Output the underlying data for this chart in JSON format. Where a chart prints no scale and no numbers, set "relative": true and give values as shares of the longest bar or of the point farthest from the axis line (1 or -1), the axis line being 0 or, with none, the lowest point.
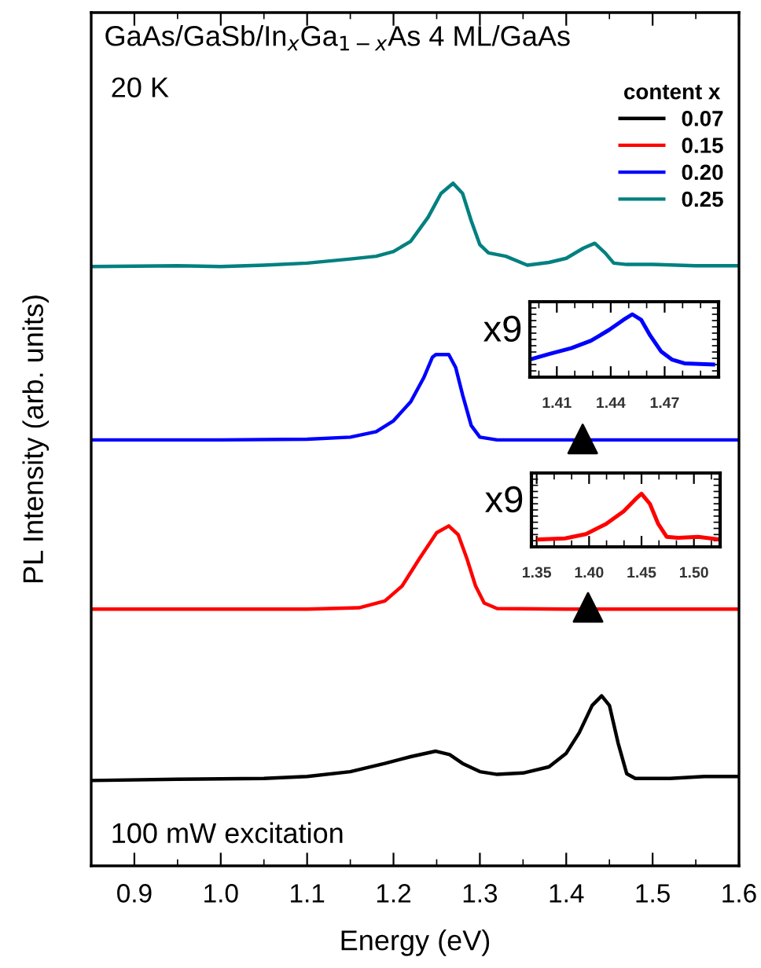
{
  "chart_data": [
    {
      "type": "line",
      "title": "GaAs/GaSb/In$_{x}$Ga$_{1−x}$As 4 ML/GaAs",
      "xlabel": "Energy (eV)",
      "ylabel": "PL Intensity (arb. units)",
      "relative": true,
      "xlim": [
        0.85,
        1.6
      ],
      "xticks": [
        {
          "value": 0.9,
          "label": "0.9"
        },
        {
          "value": 1.0,
          "label": "1.0"
        },
        {
          "value": 1.1,
          "label": "1.1"
        },
        {
          "value": 1.2,
          "label": "1.2"
        },
        {
          "value": 1.3,
          "label": "1.3"
        },
        {
          "value": 1.4,
          "label": "1.4"
        },
        {
          "value": 1.5,
          "label": "1.5"
        },
        {
          "value": 1.6,
          "label": "1.6"
        }
      ],
      "legend": "top right",
      "legend_title": "content x",
      "grid": false,
      "annotations": [
        "20 K",
        "100 mW excitation"
      ],
      "series": [
        {
          "name": "0.07",
          "color": "#000000",
          "x": [
            0.85,
            0.95,
            1.05,
            1.1,
            1.15,
            1.19,
            1.22,
            1.249,
            1.265,
            1.28,
            1.3,
            1.32,
            1.35,
            1.38,
            1.4,
            1.415,
            1.43,
            1.441,
            1.45,
            1.46,
            1.47,
            1.48,
            1.52,
            1.56,
            1.6
          ],
          "values": [
            0.125,
            0.127,
            0.128,
            0.131,
            0.138,
            0.15,
            0.16,
            0.168,
            0.163,
            0.15,
            0.138,
            0.134,
            0.136,
            0.145,
            0.165,
            0.195,
            0.235,
            0.249,
            0.235,
            0.18,
            0.135,
            0.128,
            0.128,
            0.131,
            0.131
          ]
        },
        {
          "name": "0.15",
          "color": "#ff0000",
          "x": [
            0.85,
            1.0,
            1.1,
            1.16,
            1.19,
            1.21,
            1.23,
            1.25,
            1.264,
            1.275,
            1.285,
            1.295,
            1.305,
            1.32,
            1.4,
            1.5,
            1.6
          ],
          "values": [
            0.376,
            0.376,
            0.376,
            0.378,
            0.388,
            0.41,
            0.45,
            0.488,
            0.498,
            0.485,
            0.45,
            0.41,
            0.385,
            0.377,
            0.376,
            0.376,
            0.376
          ]
        },
        {
          "name": "0.20",
          "color": "#0000ff",
          "x": [
            0.85,
            1.0,
            1.1,
            1.15,
            1.18,
            1.2,
            1.22,
            1.235,
            1.245,
            1.249,
            1.264,
            1.272,
            1.28,
            1.29,
            1.3,
            1.32,
            1.4,
            1.5,
            1.6
          ],
          "values": [
            0.624,
            0.624,
            0.625,
            0.628,
            0.636,
            0.652,
            0.68,
            0.715,
            0.745,
            0.749,
            0.749,
            0.73,
            0.69,
            0.645,
            0.628,
            0.624,
            0.624,
            0.624,
            0.624
          ]
        },
        {
          "name": "0.25",
          "color": "#008080",
          "x": [
            0.85,
            0.95,
            1.0,
            1.05,
            1.1,
            1.15,
            1.18,
            1.2,
            1.22,
            1.24,
            1.255,
            1.269,
            1.28,
            1.29,
            1.3,
            1.31,
            1.33,
            1.355,
            1.38,
            1.4,
            1.42,
            1.433,
            1.445,
            1.455,
            1.47,
            1.5,
            1.55,
            1.6
          ],
          "values": [
            0.878,
            0.879,
            0.878,
            0.88,
            0.883,
            0.889,
            0.893,
            0.9,
            0.915,
            0.95,
            0.985,
            1.0,
            0.985,
            0.945,
            0.91,
            0.898,
            0.893,
            0.88,
            0.884,
            0.89,
            0.905,
            0.912,
            0.898,
            0.883,
            0.881,
            0.881,
            0.879,
            0.879
          ]
        }
      ]
    },
    {
      "type": "line",
      "relative": true,
      "xlim": [
        1.395,
        1.5
      ],
      "xticks": [
        1.41,
        1.44,
        1.47
      ],
      "annotations": [
        "x9"
      ],
      "series": [
        {
          "color": "#0000ff",
          "x": [
            1.396,
            1.406,
            1.418,
            1.429,
            1.439,
            1.447,
            1.452,
            1.457,
            1.462,
            1.468,
            1.474,
            1.481,
            1.497
          ],
          "values": [
            0.29,
            0.37,
            0.46,
            0.58,
            0.75,
            0.91,
            1.0,
            0.91,
            0.66,
            0.41,
            0.28,
            0.22,
            0.2
          ]
        }
      ]
    },
    {
      "type": "line",
      "relative": true,
      "xlim": [
        1.345,
        1.525
      ],
      "xticks": [
        {
          "value": 1.35,
          "label": "1.35"
        },
        {
          "value": 1.4,
          "label": "1.40"
        },
        {
          "value": 1.45,
          "label": "1.45"
        },
        {
          "value": 1.5,
          "label": "1.50"
        }
      ],
      "annotations": [
        "x9"
      ],
      "series": [
        {
          "color": "#ff0000",
          "x": [
            1.352,
            1.377,
            1.397,
            1.416,
            1.433,
            1.446,
            1.45,
            1.458,
            1.466,
            1.474,
            1.485,
            1.504,
            1.524
          ],
          "values": [
            0.14,
            0.16,
            0.24,
            0.43,
            0.67,
            0.93,
            1.0,
            0.81,
            0.43,
            0.19,
            0.17,
            0.19,
            0.14
          ]
        }
      ]
    }
  ]
}
